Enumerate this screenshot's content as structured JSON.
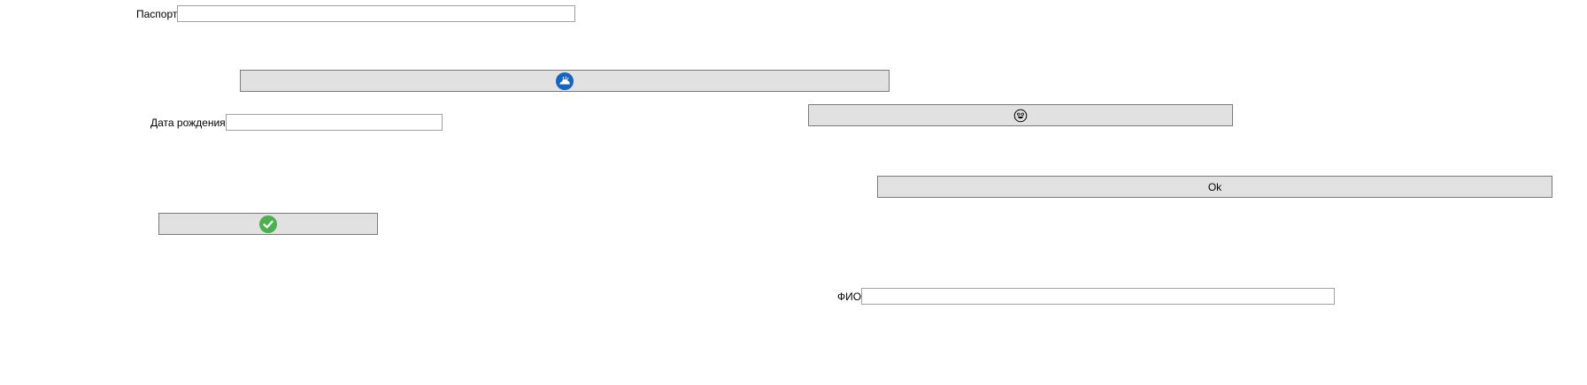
{
  "form": {
    "passport": {
      "label": "Паспорт",
      "value": "",
      "placeholder": ""
    },
    "birth_date": {
      "label": "Дата рождения",
      "value": "",
      "placeholder": ""
    },
    "full_name": {
      "label": "ФИО",
      "value": "",
      "placeholder": ""
    }
  },
  "buttons": {
    "cloud_button": {
      "icon": "cloud-icon",
      "color": "#1565c0"
    },
    "smiley_button": {
      "icon": "smiley-icon",
      "color": "#000000"
    },
    "ok_button": {
      "label": "Ok"
    },
    "check_button": {
      "icon": "check-circle-icon",
      "color": "#4caf50"
    }
  }
}
